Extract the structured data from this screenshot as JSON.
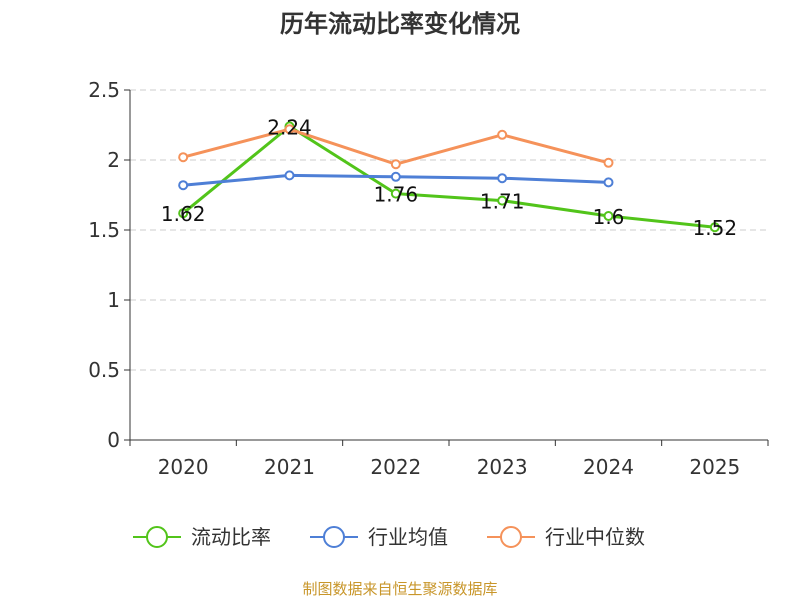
{
  "chart_data": {
    "type": "line",
    "title": "历年流动比率变化情况",
    "categories": [
      "2020",
      "2021",
      "2022",
      "2023",
      "2024",
      "2025"
    ],
    "y_ticks": [
      "0",
      "0.5",
      "1",
      "1.5",
      "2",
      "2.5"
    ],
    "ylim": [
      0,
      2.5
    ],
    "grid": true,
    "legend_position": "bottom",
    "series": [
      {
        "name": "流动比率",
        "color": "#52c41a",
        "values": [
          1.62,
          2.24,
          1.76,
          1.71,
          1.6,
          1.52
        ],
        "labels": [
          "1.62",
          "2.24",
          "1.76",
          "1.71",
          "1.6",
          "1.52"
        ]
      },
      {
        "name": "行业均值",
        "color": "#4e7fd6",
        "values": [
          1.82,
          1.89,
          1.88,
          1.87,
          1.84,
          null
        ]
      },
      {
        "name": "行业中位数",
        "color": "#f5925a",
        "values": [
          2.02,
          2.22,
          1.97,
          2.18,
          1.98,
          null
        ]
      }
    ]
  },
  "source": {
    "text": "制图数据来自恒生聚源数据库",
    "color": "#c8962a"
  }
}
